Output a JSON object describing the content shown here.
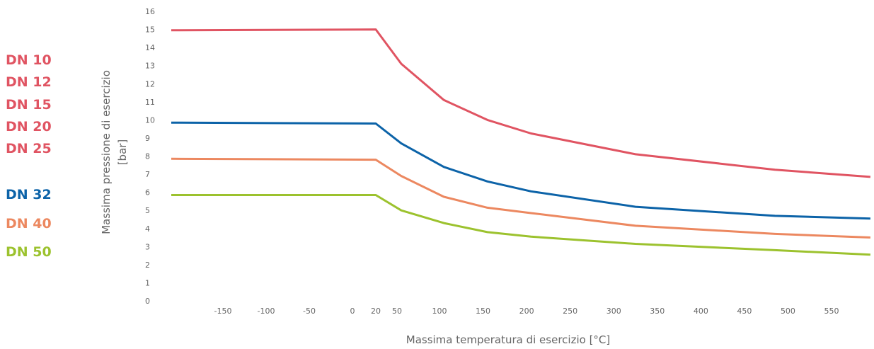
{
  "chart_data": {
    "type": "line",
    "xlabel": "Massima temperatura di esercizio [°C]",
    "ylabel_line1": "Massima pressione di esercizio",
    "ylabel_line2": "[bar]",
    "x_ticks": [
      "-150",
      "-100",
      "-50",
      "0",
      "20",
      "50",
      "100",
      "150",
      "200",
      "250",
      "300",
      "350",
      "400",
      "450",
      "500",
      "550"
    ],
    "y_ticks": [
      "0",
      "1",
      "2",
      "3",
      "4",
      "5",
      "6",
      "7",
      "8",
      "9",
      "10",
      "11",
      "12",
      "13",
      "14",
      "15",
      "16"
    ],
    "ylim": [
      0,
      16
    ],
    "grid": false,
    "legend_position": "left",
    "series": [
      {
        "legend": [
          "DN 10",
          "DN 12",
          "DN 15",
          "DN 20",
          "DN 25"
        ],
        "color": "#e05462",
        "points": [
          [
            -200,
            14.95
          ],
          [
            20,
            15.0
          ],
          [
            55,
            13.1
          ],
          [
            105,
            11.1
          ],
          [
            155,
            10.0
          ],
          [
            205,
            9.25
          ],
          [
            325,
            8.1
          ],
          [
            485,
            7.25
          ],
          [
            595,
            6.85
          ]
        ]
      },
      {
        "legend": [
          "DN 32"
        ],
        "color": "#0c63a8",
        "points": [
          [
            -200,
            9.85
          ],
          [
            20,
            9.8
          ],
          [
            55,
            8.7
          ],
          [
            105,
            7.4
          ],
          [
            155,
            6.6
          ],
          [
            205,
            6.05
          ],
          [
            325,
            5.2
          ],
          [
            485,
            4.7
          ],
          [
            595,
            4.55
          ]
        ]
      },
      {
        "legend": [
          "DN 40"
        ],
        "color": "#ec8860",
        "points": [
          [
            -200,
            7.85
          ],
          [
            20,
            7.8
          ],
          [
            55,
            6.9
          ],
          [
            105,
            5.75
          ],
          [
            155,
            5.15
          ],
          [
            205,
            4.85
          ],
          [
            325,
            4.15
          ],
          [
            485,
            3.7
          ],
          [
            595,
            3.5
          ]
        ]
      },
      {
        "legend": [
          "DN 50"
        ],
        "color": "#9cc22e",
        "points": [
          [
            -200,
            5.85
          ],
          [
            20,
            5.85
          ],
          [
            55,
            5.0
          ],
          [
            105,
            4.3
          ],
          [
            155,
            3.8
          ],
          [
            205,
            3.55
          ],
          [
            325,
            3.15
          ],
          [
            485,
            2.8
          ],
          [
            595,
            2.55
          ]
        ]
      }
    ]
  }
}
